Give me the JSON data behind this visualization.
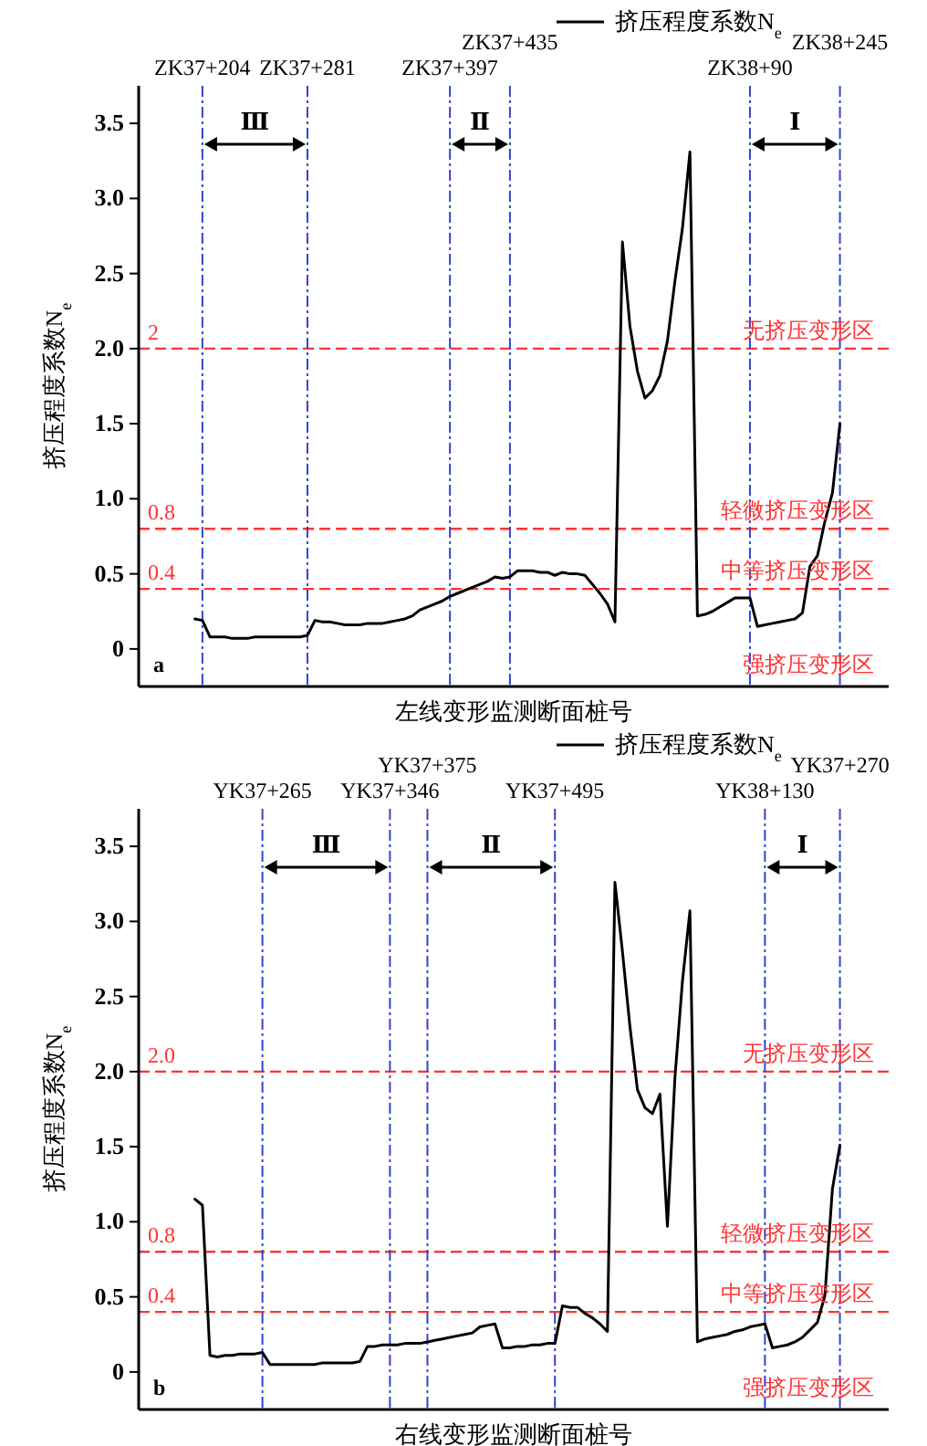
{
  "chart_data": [
    {
      "type": "line",
      "xlabel": "左线变形监测断面桩号",
      "ylabel": "挤压程度系数N$_{e}$",
      "ylim": [
        -0.25,
        3.75
      ],
      "yticks": [
        0,
        0.5,
        {
          "value": 1,
          "label": "1.0"
        },
        1.5,
        {
          "value": 2,
          "label": "2.0"
        },
        2.5,
        {
          "value": 3,
          "label": "3.0"
        },
        3.5
      ],
      "grid": false,
      "legend": "top right",
      "categories": [
        null,
        null,
        null,
        null,
        null,
        null,
        null,
        null,
        "ZK37+204",
        null,
        null,
        null,
        null,
        null,
        null,
        null,
        null,
        null,
        null,
        null,
        null,
        null,
        "ZK37+281",
        null,
        null,
        null,
        null,
        null,
        null,
        null,
        null,
        null,
        null,
        null,
        null,
        null,
        null,
        null,
        null,
        null,
        null,
        "ZK37+397",
        null,
        null,
        null,
        null,
        null,
        null,
        null,
        "ZK37+435",
        null,
        null,
        null,
        null,
        null,
        null,
        null,
        null,
        null,
        null,
        null,
        null,
        null,
        null,
        null,
        null,
        null,
        null,
        null,
        null,
        null,
        null,
        null,
        null,
        null,
        null,
        null,
        null,
        null,
        null,
        null,
        "ZK38+90",
        null,
        null,
        null,
        null,
        null,
        null,
        null,
        null,
        null,
        null,
        null,
        "ZK38+245",
        null,
        null,
        null,
        null,
        null,
        null
      ],
      "series": [
        {
          "name": "挤压程度系数N$_{e}$",
          "color": "#000000",
          "values": [
            null,
            null,
            null,
            null,
            null,
            null,
            null,
            0.2,
            0.19,
            0.08,
            0.08,
            0.08,
            0.07,
            0.07,
            0.07,
            0.08,
            0.08,
            0.08,
            0.08,
            0.08,
            0.08,
            0.08,
            0.09,
            0.19,
            0.18,
            0.18,
            0.17,
            0.16,
            0.16,
            0.16,
            0.17,
            0.17,
            0.17,
            0.18,
            0.19,
            0.2,
            0.22,
            0.26,
            0.28,
            0.3,
            0.32,
            0.35,
            0.37,
            0.39,
            0.41,
            0.43,
            0.45,
            0.48,
            0.47,
            0.48,
            0.52,
            0.52,
            0.52,
            0.51,
            0.51,
            0.49,
            0.51,
            0.5,
            0.5,
            0.49,
            0.43,
            0.37,
            0.3,
            0.18,
            2.71,
            2.15,
            1.85,
            1.67,
            1.72,
            1.82,
            2.05,
            2.45,
            2.8,
            3.31,
            0.22,
            0.23,
            0.25,
            0.28,
            0.31,
            0.34,
            0.34,
            0.34,
            0.15,
            0.16,
            0.17,
            0.18,
            0.19,
            0.2,
            0.24,
            0.55,
            0.62,
            0.85,
            1.04,
            1.5,
            null,
            null,
            null,
            null,
            null,
            null
          ]
        }
      ],
      "ref_lines": [
        {
          "axis": "y",
          "value": 2,
          "label": "2",
          "color": "#ff3333",
          "line_style": "dashed"
        },
        {
          "axis": "y",
          "value": 0.8,
          "label": "0.8",
          "color": "#ff3333",
          "line_style": "dashed"
        },
        {
          "axis": "y",
          "value": 0.4,
          "label": "0.4",
          "color": "#ff3333",
          "line_style": "dashed"
        },
        {
          "axis": "x",
          "value": "ZK37+204",
          "color": "#3344cc",
          "line_style": "dashdot"
        },
        {
          "axis": "x",
          "value": "ZK37+281",
          "color": "#3344cc",
          "line_style": "dashdot"
        },
        {
          "axis": "x",
          "value": "ZK37+397",
          "color": "#3344cc",
          "line_style": "dashdot"
        },
        {
          "axis": "x",
          "value": "ZK37+435",
          "color": "#3344cc",
          "line_style": "dashdot"
        },
        {
          "axis": "x",
          "value": "ZK38+90",
          "color": "#3344cc",
          "line_style": "dashdot"
        },
        {
          "axis": "x",
          "value": "ZK38+245",
          "color": "#3344cc",
          "line_style": "dashdot"
        }
      ],
      "annotations": [
        "a",
        "无挤压变形区",
        "轻微挤压变形区",
        "中等挤压变形区",
        "强挤压变形区",
        "Ⅲ",
        "Ⅱ",
        "Ⅰ"
      ]
    },
    {
      "type": "line",
      "xlabel": "右线变形监测断面桩号",
      "ylabel": "挤压程度系数N$_{e}$",
      "ylim": [
        -0.25,
        3.75
      ],
      "yticks": [
        0,
        0.5,
        {
          "value": 1,
          "label": "1.0"
        },
        1.5,
        {
          "value": 2,
          "label": "2.0"
        },
        2.5,
        {
          "value": 3,
          "label": "3.0"
        },
        3.5
      ],
      "grid": false,
      "legend": "top right",
      "categories": [
        null,
        null,
        null,
        null,
        null,
        null,
        null,
        null,
        null,
        null,
        null,
        null,
        null,
        null,
        null,
        null,
        "YK37+265",
        null,
        null,
        null,
        null,
        null,
        null,
        null,
        null,
        null,
        null,
        null,
        null,
        null,
        null,
        null,
        null,
        "YK37+346",
        null,
        null,
        null,
        null,
        "YK37+375",
        null,
        null,
        null,
        null,
        null,
        null,
        null,
        null,
        null,
        null,
        null,
        null,
        null,
        null,
        null,
        null,
        "YK37+495",
        null,
        null,
        null,
        null,
        null,
        null,
        null,
        null,
        null,
        null,
        null,
        null,
        null,
        null,
        null,
        null,
        null,
        null,
        null,
        null,
        null,
        null,
        null,
        null,
        null,
        null,
        null,
        "YK38+130",
        null,
        null,
        null,
        null,
        null,
        null,
        null,
        null,
        null,
        "YK37+270",
        null,
        null,
        null,
        null,
        null,
        null
      ],
      "series": [
        {
          "name": "挤压程度系数N$_{e}$",
          "color": "#000000",
          "values": [
            null,
            null,
            null,
            null,
            null,
            null,
            null,
            1.15,
            1.11,
            0.11,
            0.1,
            0.11,
            0.11,
            0.12,
            0.12,
            0.12,
            0.13,
            0.05,
            0.05,
            0.05,
            0.05,
            0.05,
            0.05,
            0.05,
            0.06,
            0.06,
            0.06,
            0.06,
            0.06,
            0.07,
            0.17,
            0.17,
            0.18,
            0.18,
            0.18,
            0.19,
            0.19,
            0.19,
            0.2,
            0.21,
            0.22,
            0.23,
            0.24,
            0.25,
            0.26,
            0.3,
            0.31,
            0.32,
            0.16,
            0.16,
            0.17,
            0.17,
            0.18,
            0.18,
            0.19,
            0.19,
            0.44,
            0.43,
            0.43,
            0.39,
            0.36,
            0.32,
            0.27,
            3.26,
            2.8,
            2.3,
            1.88,
            1.76,
            1.72,
            1.85,
            0.97,
            1.96,
            2.6,
            3.07,
            0.2,
            0.22,
            0.23,
            0.24,
            0.25,
            0.27,
            0.28,
            0.3,
            0.31,
            0.32,
            0.16,
            0.17,
            0.18,
            0.2,
            0.23,
            0.28,
            0.33,
            0.51,
            1.22,
            1.51,
            null,
            null,
            null,
            null,
            null,
            null
          ]
        }
      ],
      "ref_lines": [
        {
          "axis": "y",
          "value": 2,
          "label": "2.0",
          "color": "#ff3333",
          "line_style": "dashed"
        },
        {
          "axis": "y",
          "value": 0.8,
          "label": "0.8",
          "color": "#ff3333",
          "line_style": "dashed"
        },
        {
          "axis": "y",
          "value": 0.4,
          "label": "0.4",
          "color": "#ff3333",
          "line_style": "dashed"
        },
        {
          "axis": "x",
          "value": "YK37+265",
          "color": "#3344cc",
          "line_style": "dashdot"
        },
        {
          "axis": "x",
          "value": "YK37+346",
          "color": "#3344cc",
          "line_style": "dashdot"
        },
        {
          "axis": "x",
          "value": "YK37+375",
          "color": "#3344cc",
          "line_style": "dashdot"
        },
        {
          "axis": "x",
          "value": "YK37+495",
          "color": "#3344cc",
          "line_style": "dashdot"
        },
        {
          "axis": "x",
          "value": "YK38+130",
          "color": "#3344cc",
          "line_style": "dashdot"
        },
        {
          "axis": "x",
          "value": "YK37+270",
          "color": "#3344cc",
          "line_style": "dashdot"
        }
      ],
      "annotations": [
        "b",
        "无挤压变形区",
        "轻微挤压变形区",
        "中等挤压变形区",
        "强挤压变形区",
        "Ⅲ",
        "Ⅱ",
        "Ⅰ"
      ]
    }
  ]
}
